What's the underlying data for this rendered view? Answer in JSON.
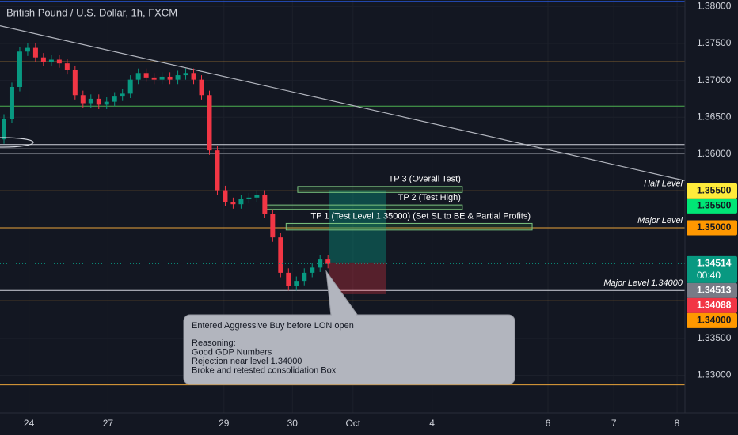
{
  "chart_data": {
    "type": "candlestick",
    "title": "British Pound / U.S. Dollar, 1h, FXCM",
    "up_color": "#089981",
    "down_color": "#f23645",
    "x": [
      1.5,
      4.5,
      7.5,
      10.5,
      13.5,
      16.5,
      19.5,
      22.5,
      25.5,
      28.5,
      31.5,
      34.5,
      37.5,
      40.5,
      43.5,
      46.5,
      49.5,
      52.5,
      55.5,
      58.5,
      61.5,
      64.5,
      67.5,
      70.5,
      73.5,
      76.5,
      79.5,
      82.5,
      85.5,
      88.5,
      91.5,
      94.5,
      97.5,
      100.5,
      103.5,
      106.5,
      109.5,
      112.5,
      115.5,
      118.5,
      121.5,
      124.5
    ],
    "open": [
      1.362,
      1.3648,
      1.3691,
      1.3739,
      1.3744,
      1.3731,
      1.3725,
      1.3728,
      1.3723,
      1.3714,
      1.368,
      1.3669,
      1.3675,
      1.3667,
      1.3671,
      1.3678,
      1.3682,
      1.3701,
      1.371,
      1.3704,
      1.3701,
      1.3705,
      1.3701,
      1.3707,
      1.371,
      1.3701,
      1.368,
      1.3605,
      1.3551,
      1.3535,
      1.3532,
      1.3539,
      1.3541,
      1.3545,
      1.3519,
      1.3487,
      1.3439,
      1.3421,
      1.3428,
      1.3439,
      1.3446,
      1.3457
    ],
    "high": [
      1.3654,
      1.3697,
      1.3745,
      1.375,
      1.375,
      1.3737,
      1.3734,
      1.3734,
      1.3729,
      1.372,
      1.3686,
      1.3681,
      1.3681,
      1.3677,
      1.3684,
      1.3688,
      1.3707,
      1.3716,
      1.3716,
      1.371,
      1.3711,
      1.3711,
      1.3713,
      1.3716,
      1.3716,
      1.3707,
      1.3686,
      1.3611,
      1.3557,
      1.3541,
      1.3545,
      1.3547,
      1.3551,
      1.3551,
      1.3525,
      1.3493,
      1.3445,
      1.3434,
      1.3445,
      1.3452,
      1.3463,
      1.3463
    ],
    "low": [
      1.3614,
      1.3642,
      1.3685,
      1.3733,
      1.3725,
      1.3719,
      1.3719,
      1.3717,
      1.3708,
      1.3674,
      1.3663,
      1.3663,
      1.3661,
      1.3661,
      1.3665,
      1.3672,
      1.3676,
      1.3695,
      1.3698,
      1.3695,
      1.3695,
      1.3695,
      1.3695,
      1.3701,
      1.3695,
      1.3674,
      1.3599,
      1.3545,
      1.3529,
      1.3526,
      1.3526,
      1.3533,
      1.3535,
      1.3513,
      1.3481,
      1.3433,
      1.3415,
      1.3415,
      1.3422,
      1.3433,
      1.344,
      1.3445
    ],
    "close": [
      1.3648,
      1.3691,
      1.3739,
      1.3744,
      1.3731,
      1.3725,
      1.3728,
      1.3723,
      1.3714,
      1.368,
      1.3669,
      1.3675,
      1.3667,
      1.3671,
      1.3678,
      1.3682,
      1.3701,
      1.371,
      1.3704,
      1.3701,
      1.3705,
      1.3701,
      1.3707,
      1.371,
      1.3701,
      1.368,
      1.3605,
      1.3551,
      1.3535,
      1.3532,
      1.3539,
      1.3541,
      1.3545,
      1.3519,
      1.3487,
      1.3439,
      1.3421,
      1.3428,
      1.3439,
      1.3446,
      1.3457,
      1.3451
    ],
    "xlim": [
      0,
      260
    ],
    "ylim": [
      1.3249,
      1.3809
    ],
    "xticks": [
      {
        "value": 11,
        "label": "24"
      },
      {
        "value": 41,
        "label": "27"
      },
      {
        "value": 85,
        "label": "29"
      },
      {
        "value": 111,
        "label": "30"
      },
      {
        "value": 134,
        "label": "Oct"
      },
      {
        "value": 164,
        "label": "4"
      },
      {
        "value": 208,
        "label": "6"
      },
      {
        "value": 233,
        "label": "7"
      },
      {
        "value": 257,
        "label": "8"
      }
    ],
    "yticks": [
      {
        "value": 1.38,
        "label": "1.38000"
      },
      {
        "value": 1.375,
        "label": "1.37500"
      },
      {
        "value": 1.37,
        "label": "1.37000"
      },
      {
        "value": 1.365,
        "label": "1.36500"
      },
      {
        "value": 1.36,
        "label": "1.36000"
      },
      {
        "value": 1.335,
        "label": "1.33500"
      },
      {
        "value": 1.33,
        "label": "1.33000"
      }
    ],
    "grid": true,
    "levels": [
      {
        "value": 1.3807,
        "color": "#2962ff"
      },
      {
        "value": 1.3725,
        "color": "#e8a33a"
      },
      {
        "value": 1.3665,
        "color": "#4caf50"
      },
      {
        "value": 1.3613,
        "color": "#d1d4dc"
      },
      {
        "value": 1.3607,
        "color": "#d1d4dc"
      },
      {
        "value": 1.3601,
        "color": "#d1d4dc"
      },
      {
        "value": 1.355,
        "color": "#e8a33a"
      },
      {
        "value": 1.35,
        "color": "#e8a33a"
      },
      {
        "value": 1.3415,
        "color": "#d1d4dc"
      },
      {
        "value": 1.3401,
        "color": "#e8a33a"
      },
      {
        "value": 1.3287,
        "color": "#e8a33a"
      }
    ],
    "trendline": {
      "x": [
        0,
        260
      ],
      "y": [
        1.3774,
        1.3564
      ],
      "color": "#b2b5be"
    },
    "targets": [
      {
        "label": "TP 3 (Overall Test)",
        "x": [
          113,
          175.5
        ],
        "y": [
          1.3556,
          1.3548
        ]
      },
      {
        "label": "TP 2 (Test High)",
        "x": [
          101,
          175.5
        ],
        "y": [
          1.3531,
          1.3525
        ]
      },
      {
        "label": "TP 1 (Test Level 1.35000) (Set SL to BE & Partial Profits)",
        "x": [
          108.6,
          202
        ],
        "y": [
          1.3506,
          1.3497
        ]
      }
    ],
    "zones": [
      {
        "x": [
          125,
          146.4
        ],
        "y": [
          1.3551,
          1.3453
        ],
        "color": "rgba(8,153,129,0.4)"
      },
      {
        "x": [
          125,
          146.4
        ],
        "y": [
          1.3453,
          1.341
        ],
        "color": "rgba(242,54,69,0.3)"
      }
    ],
    "level_labels": [
      {
        "text": "Half Level",
        "value": 1.355
      },
      {
        "text": "Major Level",
        "value": 1.35
      },
      {
        "text": "Major Level 1.34000",
        "value": 1.3415
      }
    ],
    "price_tags": [
      {
        "value": 1.355,
        "label": "1.35500",
        "color": "#ffeb3b",
        "text_color": "#131722"
      },
      {
        "value": 1.355,
        "label": "1.35500",
        "color": "#00e676",
        "text_color": "#131722"
      },
      {
        "value": 1.35,
        "label": "1.35000",
        "color": "#ff9800",
        "text_color": "#131722"
      },
      {
        "value": 1.34514,
        "label": "1.34514",
        "sub": "00:40",
        "color": "#089981",
        "text_color": "#ffffff"
      },
      {
        "value": 1.34513,
        "label": "1.34513",
        "color": "#787b86",
        "text_color": "#ffffff"
      },
      {
        "value": 1.34088,
        "label": "1.34088",
        "color": "#f23645",
        "text_color": "#ffffff"
      },
      {
        "value": 1.34,
        "label": "1.34000",
        "color": "#ff9800",
        "text_color": "#131722"
      }
    ],
    "note": {
      "lines": [
        "Entered Aggressive Buy before LON open",
        "Reasoning:",
        "Good GDP Numbers",
        "Rejection near level 1.34000",
        "Broke and retested consolidation Box"
      ]
    }
  }
}
